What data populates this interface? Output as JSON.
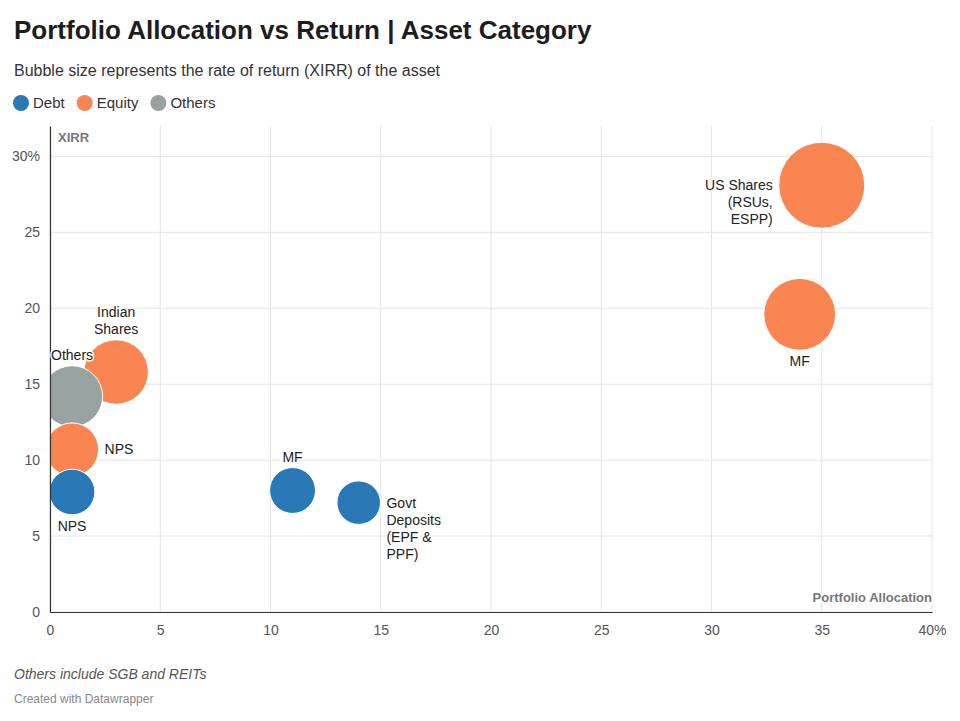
{
  "chart_data": {
    "type": "scatter",
    "title": "Portfolio Allocation vs Return | Asset Category",
    "subtitle": "Bubble size represents the rate of return (XIRR) of the asset",
    "x_label": "Portfolio Allocation",
    "y_label": "XIRR",
    "note": "Others include SGB and REITs",
    "credit": "Created with Datawrapper",
    "xlim": [
      0,
      40
    ],
    "xticks": [
      0,
      5,
      10,
      15,
      20,
      25,
      30,
      35,
      {
        "value": 40,
        "label": "40%"
      }
    ],
    "ylim": [
      0,
      32
    ],
    "yticks": [
      0,
      5,
      10,
      15,
      20,
      25,
      {
        "value": 30,
        "label": "30%"
      }
    ],
    "grid": true,
    "legend": "top-left",
    "marker": "circle",
    "series": [
      {
        "name": "Debt",
        "color": "#2a78b5",
        "x": [
          1,
          11,
          14
        ],
        "values": [
          7.9,
          8.0,
          7.2
        ],
        "sizes": [
          7.9,
          8.0,
          7.2
        ],
        "labels": [
          [
            "NPS"
          ],
          [
            "MF"
          ],
          [
            "Govt",
            "Deposits",
            "(EPF &",
            "PPF)"
          ]
        ]
      },
      {
        "name": "Equity",
        "color": "#fb8551",
        "x": [
          3,
          1,
          34,
          35
        ],
        "values": [
          15.8,
          10.7,
          19.6,
          28.1
        ],
        "sizes": [
          15.8,
          10.7,
          19.6,
          28.1
        ],
        "labels": [
          [
            "Indian",
            "Shares"
          ],
          [
            "NPS"
          ],
          [
            "MF"
          ],
          [
            "US Shares",
            "(RSUs,",
            "ESPP)"
          ]
        ]
      },
      {
        "name": "Others",
        "color": "#97a2a1",
        "x": [
          1
        ],
        "values": [
          14.2
        ],
        "sizes": [
          14.2
        ],
        "labels": [
          [
            "Others"
          ]
        ]
      }
    ]
  }
}
